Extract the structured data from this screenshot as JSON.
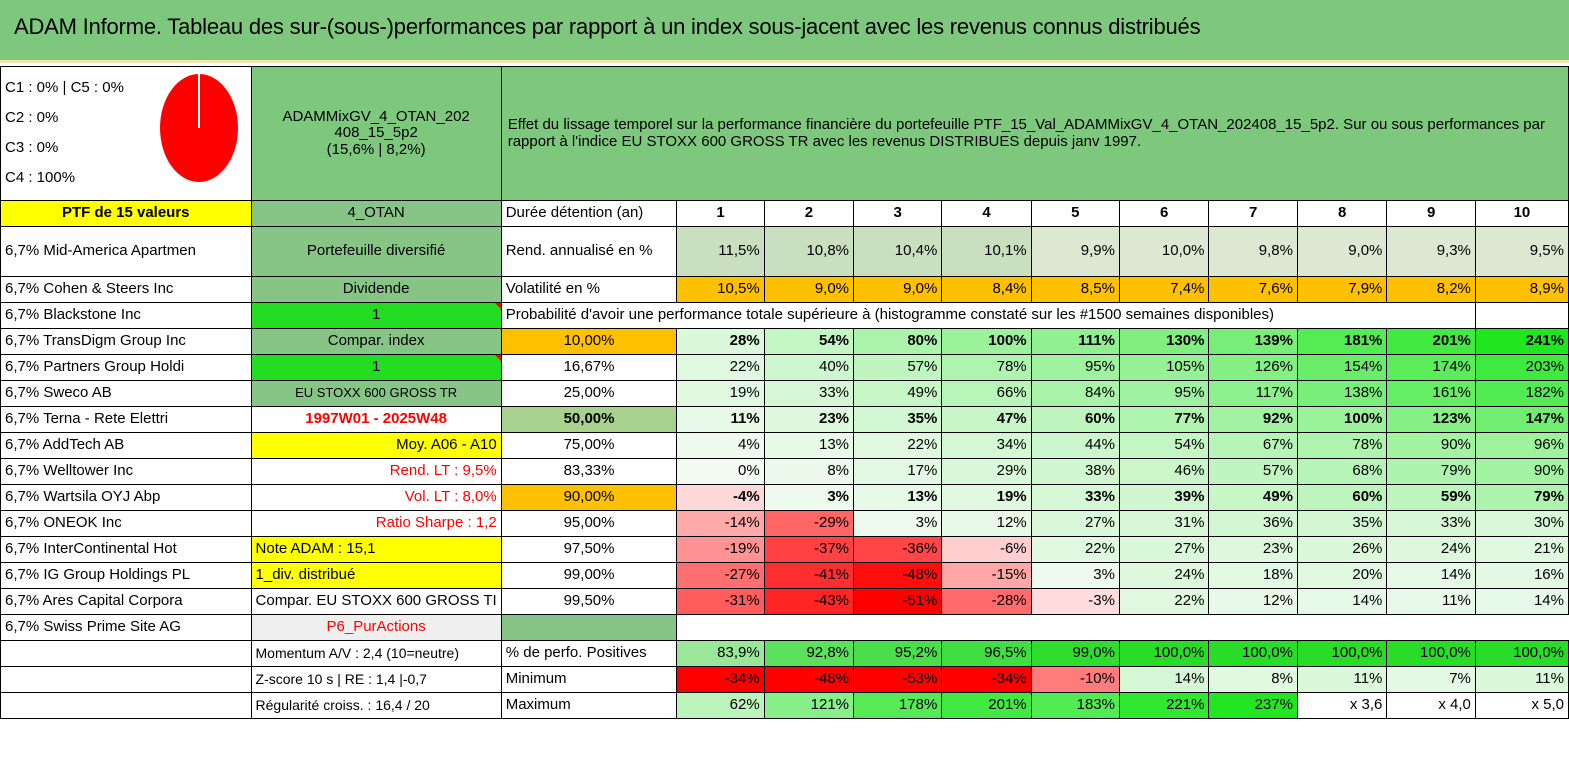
{
  "title": "ADAM Informe. Tableau des sur-(sous-)performances par rapport à un index sous-jacent avec les revenus connus distribués",
  "categories": [
    "C1 : 0% | C5 : 0%",
    "C2 : 0%",
    "C3 : 0%",
    "C4 : 100%"
  ],
  "pie_colors": {
    "fill": "#ff0000",
    "stroke": "#ffffff"
  },
  "fund": {
    "line1": "ADAMMixGV_4_OTAN_202",
    "line2": "408_15_5p2",
    "line3": "(15,6% | 8,2%)"
  },
  "description": "Effet du lissage temporel sur la performance financière du portefeuille PTF_15_Val_ADAMMixGV_4_OTAN_202408_15_5p2. Sur ou sous performances par rapport à l'indice EU STOXX 600 GROSS TR avec les revenus DISTRIBUES depuis janv 1997.",
  "ptf_label": "PTF de 15 valeurs",
  "otan_label": "4_OTAN",
  "holdings": [
    "6,7% Mid-America Apartmen",
    "6,7% Cohen & Steers Inc",
    "6,7% Blackstone Inc",
    "6,7% TransDigm Group Inc",
    "6,7% Partners Group Holdi",
    "6,7% Sweco AB",
    "6,7% Terna - Rete Elettri",
    "6,7% AddTech AB",
    "6,7% Welltower Inc",
    "6,7% Wartsila OYJ Abp",
    "6,7% ONEOK Inc",
    "6,7% InterContinental Hot",
    "6,7% IG Group Holdings PL",
    "6,7% Ares Capital Corpora",
    "6,7% Swiss Prime Site AG"
  ],
  "info": [
    "Portefeuille diversifié",
    "Dividende",
    "1",
    "Compar. index",
    "1",
    "EU STOXX 600 GROSS TR",
    "1997W01 - 2025W48",
    "Moy. A06 - A10",
    "Rend. LT : 9,5%",
    "Vol. LT : 8,0%",
    "Ratio Sharpe : 1,2",
    "Note ADAM : 15,1",
    "1_div. distribué",
    "Compar. EU STOXX 600 GROSS TI",
    "P6_PurActions"
  ],
  "footer_info": [
    "Momentum A/V : 2,4 (10=neutre)",
    "Z-score 10 s | RE : 1,4 |-0,7",
    "Régularité croiss. : 16,4 / 20"
  ],
  "header": {
    "label": "Durée détention (an)",
    "years": [
      "1",
      "2",
      "3",
      "4",
      "5",
      "6",
      "7",
      "8",
      "9",
      "10"
    ]
  },
  "returns": {
    "label": "Rend. annualisé en %",
    "values": [
      "11,5%",
      "10,8%",
      "10,4%",
      "10,1%",
      "9,9%",
      "10,0%",
      "9,8%",
      "9,0%",
      "9,3%",
      "9,5%"
    ]
  },
  "volatility": {
    "label": "Volatilité en %",
    "values": [
      "10,5%",
      "9,0%",
      "9,0%",
      "8,4%",
      "8,5%",
      "7,4%",
      "7,6%",
      "7,9%",
      "8,2%",
      "8,9%"
    ]
  },
  "prob_title": "Probabilité d'avoir une performance totale supérieure à (histogramme constaté sur les #1500 semaines disponibles)",
  "prob_rows": [
    {
      "level": "10,00%",
      "values": [
        "28%",
        "54%",
        "80%",
        "100%",
        "111%",
        "130%",
        "139%",
        "181%",
        "201%",
        "241%"
      ]
    },
    {
      "level": "16,67%",
      "values": [
        "22%",
        "40%",
        "57%",
        "78%",
        "95%",
        "105%",
        "126%",
        "154%",
        "174%",
        "203%"
      ]
    },
    {
      "level": "25,00%",
      "values": [
        "19%",
        "33%",
        "49%",
        "66%",
        "84%",
        "95%",
        "117%",
        "138%",
        "161%",
        "182%"
      ]
    },
    {
      "level": "50,00%",
      "values": [
        "11%",
        "23%",
        "35%",
        "47%",
        "60%",
        "77%",
        "92%",
        "100%",
        "123%",
        "147%"
      ]
    },
    {
      "level": "75,00%",
      "values": [
        "4%",
        "13%",
        "22%",
        "34%",
        "44%",
        "54%",
        "67%",
        "78%",
        "90%",
        "96%"
      ]
    },
    {
      "level": "83,33%",
      "values": [
        "0%",
        "8%",
        "17%",
        "29%",
        "38%",
        "46%",
        "57%",
        "68%",
        "79%",
        "90%"
      ]
    },
    {
      "level": "90,00%",
      "values": [
        "-4%",
        "3%",
        "13%",
        "19%",
        "33%",
        "39%",
        "49%",
        "60%",
        "59%",
        "79%"
      ]
    },
    {
      "level": "95,00%",
      "values": [
        "-14%",
        "-29%",
        "3%",
        "12%",
        "27%",
        "31%",
        "36%",
        "35%",
        "33%",
        "30%"
      ]
    },
    {
      "level": "97,50%",
      "values": [
        "-19%",
        "-37%",
        "-36%",
        "-6%",
        "22%",
        "27%",
        "23%",
        "26%",
        "24%",
        "21%"
      ]
    },
    {
      "level": "99,00%",
      "values": [
        "-27%",
        "-41%",
        "-48%",
        "-15%",
        "3%",
        "24%",
        "18%",
        "20%",
        "14%",
        "16%"
      ]
    },
    {
      "level": "99,50%",
      "values": [
        "-31%",
        "-43%",
        "-51%",
        "-28%",
        "-3%",
        "22%",
        "12%",
        "14%",
        "11%",
        "14%"
      ]
    }
  ],
  "stats": [
    {
      "label": "% de perfo. Positives",
      "values": [
        "83,9%",
        "92,8%",
        "95,2%",
        "96,5%",
        "99,0%",
        "100,0%",
        "100,0%",
        "100,0%",
        "100,0%",
        "100,0%"
      ]
    },
    {
      "label": "Minimum",
      "values": [
        "-34%",
        "-48%",
        "-53%",
        "-34%",
        "-10%",
        "14%",
        "8%",
        "11%",
        "7%",
        "11%"
      ]
    },
    {
      "label": "Maximum",
      "values": [
        "62%",
        "121%",
        "178%",
        "201%",
        "183%",
        "221%",
        "237%",
        "x 3,6",
        "x 4,0",
        "x 5,0"
      ]
    }
  ]
}
